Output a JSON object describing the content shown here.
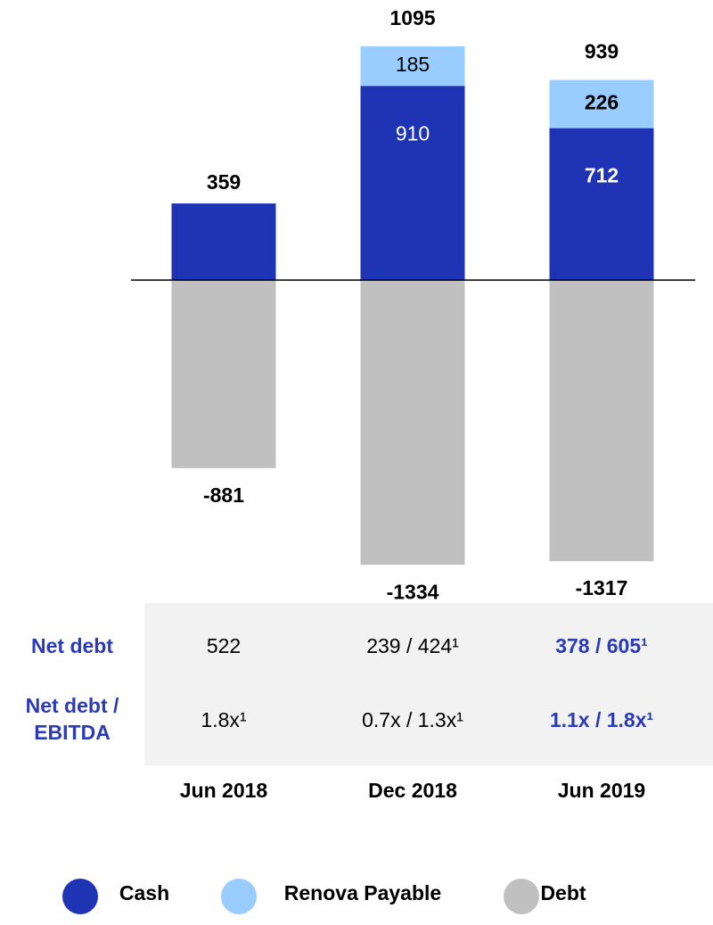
{
  "chart_data": {
    "type": "bar",
    "stacked": true,
    "categories": [
      "Jun 2018",
      "Dec 2018",
      "Jun 2019"
    ],
    "series": [
      {
        "name": "Cash",
        "color": "#1f33b5",
        "values": [
          359,
          910,
          712
        ]
      },
      {
        "name": "Renova Payable",
        "color": "#99ccff",
        "values": [
          null,
          185,
          226
        ]
      },
      {
        "name": "Debt",
        "color": "#c0c0c0",
        "values": [
          -881,
          -1334,
          -1317
        ]
      }
    ],
    "totals": [
      null,
      1095,
      939
    ]
  },
  "table": {
    "rows": [
      {
        "label": "Net debt",
        "values": [
          "522",
          "239 / 424¹",
          "378 / 605¹"
        ]
      },
      {
        "label": "Net debt / EBITDA",
        "values": [
          "1.8x¹",
          "0.7x / 1.3x¹",
          "1.1x / 1.8x¹"
        ]
      }
    ]
  }
}
